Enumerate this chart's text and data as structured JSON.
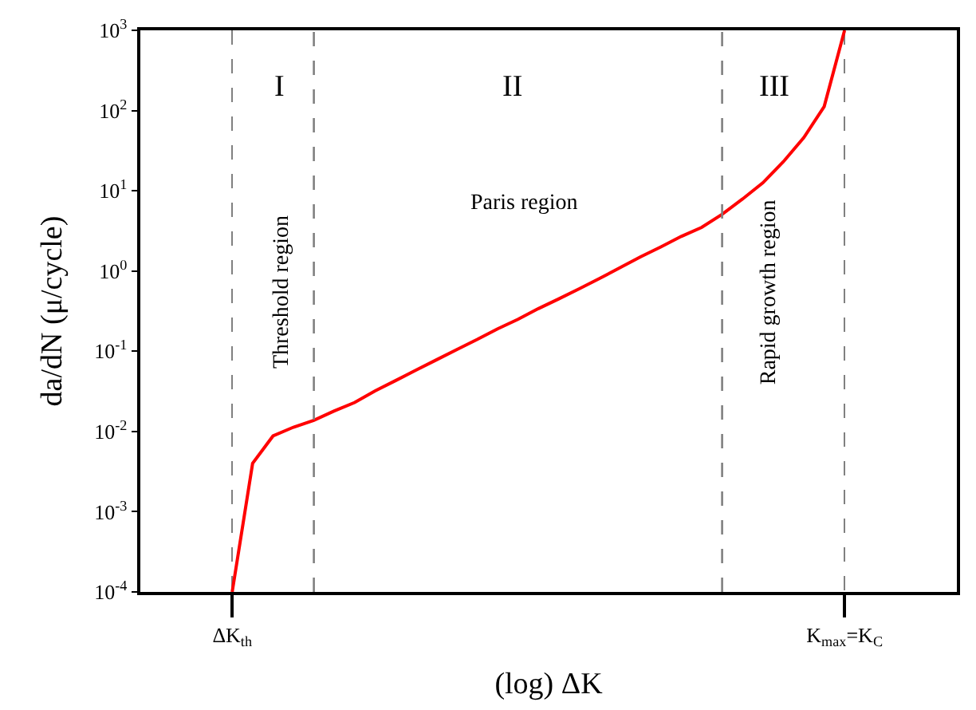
{
  "chart_data": {
    "type": "line",
    "xlabel": "(log) ΔK",
    "ylabel": "da/dN (μ/cycle)",
    "categories": [
      null,
      null,
      null,
      null,
      "ΔK$_{th}$",
      null,
      null,
      null,
      null,
      null,
      null,
      null,
      null,
      null,
      null,
      null,
      null,
      null,
      null,
      null,
      null,
      null,
      null,
      null,
      null,
      null,
      null,
      null,
      null,
      null,
      null,
      null,
      null,
      null,
      "K$_{max}$=K$_{C}$",
      null,
      null,
      null,
      null,
      null
    ],
    "series": [
      {
        "color": "#ff0000",
        "values": [
          null,
          null,
          null,
          null,
          0.0001,
          0.004,
          0.0088,
          0.0113,
          0.0138,
          0.018,
          0.023,
          0.032,
          0.043,
          0.058,
          0.078,
          0.105,
          0.14,
          0.19,
          0.25,
          0.34,
          0.45,
          0.6,
          0.81,
          1.1,
          1.5,
          2.0,
          2.7,
          3.5,
          5.1,
          7.9,
          12.6,
          23,
          46,
          112,
          1000,
          null,
          null,
          null,
          null,
          null
        ]
      }
    ],
    "log": "y",
    "ylim": [
      0.0001,
      1000
    ],
    "yticks": [
      {
        "value": 0.0001,
        "label": "10$^{-4}$"
      },
      {
        "value": 0.001,
        "label": "10$^{-3}$"
      },
      {
        "value": 0.01,
        "label": "10$^{-2}$"
      },
      {
        "value": 0.1,
        "label": "10$^{-1}$"
      },
      {
        "value": 1,
        "label": "10$^{0}$"
      },
      {
        "value": 10,
        "label": "10$^{1}$"
      },
      {
        "value": 100,
        "label": "10$^{2}$"
      },
      {
        "value": 1000,
        "label": "10$^{3}$"
      }
    ],
    "annotations": [
      "I",
      "II",
      "III",
      "Threshold region",
      "Paris region",
      "Rapid growth region"
    ],
    "line_style": "solid",
    "marker": "none",
    "grid": "x"
  }
}
